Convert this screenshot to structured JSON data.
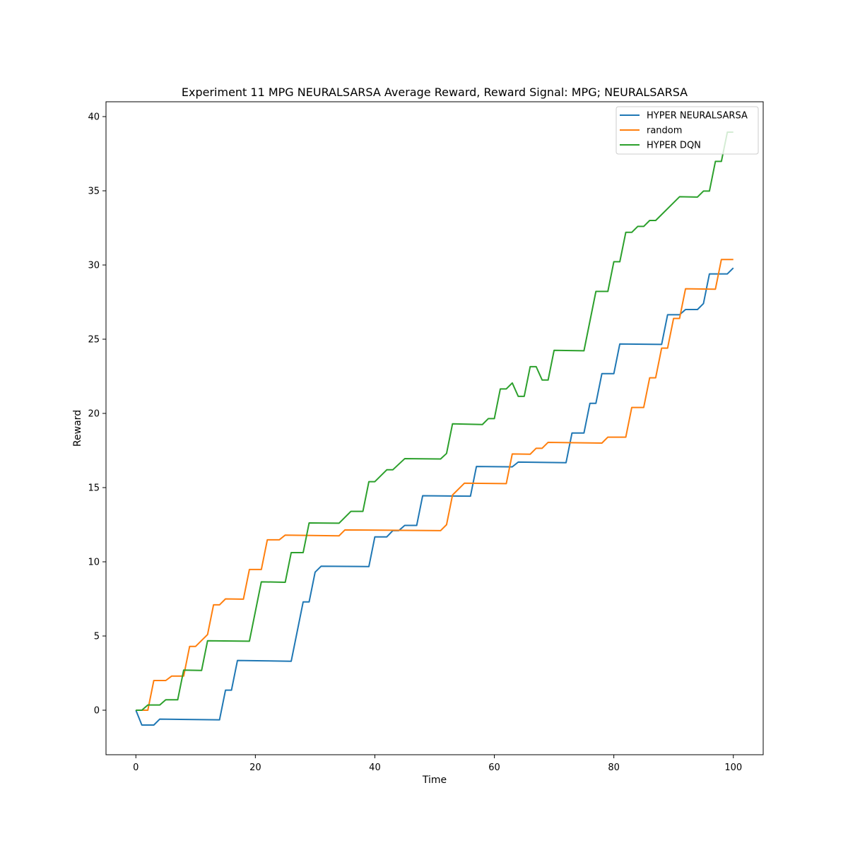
{
  "chart_data": {
    "type": "line",
    "title": "Experiment 11 MPG NEURALSARSA Average Reward,  Reward Signal: MPG; NEURALSARSA",
    "xlabel": "Time",
    "ylabel": "Reward",
    "xlim": [
      -5,
      105
    ],
    "ylim": [
      -3,
      41
    ],
    "xticks": [
      0,
      20,
      40,
      60,
      80,
      100
    ],
    "yticks": [
      0,
      5,
      10,
      15,
      20,
      25,
      30,
      35,
      40
    ],
    "grid": false,
    "legend_position": "top-right",
    "series": [
      {
        "name": "HYPER NEURALSARSA",
        "color": "#1f77b4",
        "points": [
          [
            0,
            0
          ],
          [
            1,
            -1
          ],
          [
            3,
            -1
          ],
          [
            4,
            -0.6
          ],
          [
            14,
            -0.65
          ],
          [
            15,
            1.35
          ],
          [
            16,
            1.35
          ],
          [
            17,
            3.35
          ],
          [
            26,
            3.3
          ],
          [
            28,
            7.3
          ],
          [
            29,
            7.3
          ],
          [
            30,
            9.3
          ],
          [
            31,
            9.7
          ],
          [
            39,
            9.68
          ],
          [
            40,
            11.68
          ],
          [
            42,
            11.68
          ],
          [
            43,
            12.1
          ],
          [
            44,
            12.1
          ],
          [
            45,
            12.45
          ],
          [
            47,
            12.45
          ],
          [
            48,
            14.45
          ],
          [
            56,
            14.42
          ],
          [
            57,
            16.42
          ],
          [
            63,
            16.4
          ],
          [
            64,
            16.72
          ],
          [
            72,
            16.68
          ],
          [
            73,
            18.68
          ],
          [
            75,
            18.68
          ],
          [
            76,
            20.68
          ],
          [
            77,
            20.68
          ],
          [
            78,
            22.68
          ],
          [
            80,
            22.68
          ],
          [
            81,
            24.68
          ],
          [
            88,
            24.65
          ],
          [
            89,
            26.65
          ],
          [
            91,
            26.65
          ],
          [
            92,
            27
          ],
          [
            94,
            27
          ],
          [
            95,
            27.4
          ],
          [
            96,
            29.4
          ],
          [
            99,
            29.4
          ],
          [
            100,
            29.8
          ]
        ]
      },
      {
        "name": "random",
        "color": "#ff7f0e",
        "points": [
          [
            0,
            0
          ],
          [
            2,
            0
          ],
          [
            3,
            2
          ],
          [
            5,
            2
          ],
          [
            6,
            2.3
          ],
          [
            8,
            2.3
          ],
          [
            9,
            4.3
          ],
          [
            10,
            4.3
          ],
          [
            12,
            5.1
          ],
          [
            13,
            7.1
          ],
          [
            14,
            7.1
          ],
          [
            15,
            7.5
          ],
          [
            18,
            7.48
          ],
          [
            19,
            9.48
          ],
          [
            21,
            9.48
          ],
          [
            22,
            11.48
          ],
          [
            24,
            11.48
          ],
          [
            25,
            11.8
          ],
          [
            34,
            11.75
          ],
          [
            35,
            12.15
          ],
          [
            51,
            12.1
          ],
          [
            52,
            12.5
          ],
          [
            53,
            14.5
          ],
          [
            55,
            15.3
          ],
          [
            62,
            15.27
          ],
          [
            63,
            17.27
          ],
          [
            66,
            17.25
          ],
          [
            67,
            17.65
          ],
          [
            68,
            17.65
          ],
          [
            69,
            18.05
          ],
          [
            78,
            18
          ],
          [
            79,
            18.4
          ],
          [
            82,
            18.4
          ],
          [
            83,
            20.4
          ],
          [
            85,
            20.4
          ],
          [
            86,
            22.4
          ],
          [
            87,
            22.4
          ],
          [
            88,
            24.4
          ],
          [
            89,
            24.4
          ],
          [
            90,
            26.4
          ],
          [
            91,
            26.4
          ],
          [
            92,
            28.4
          ],
          [
            97,
            28.37
          ],
          [
            98,
            30.37
          ],
          [
            100,
            30.37
          ]
        ]
      },
      {
        "name": "HYPER DQN",
        "color": "#2ca02c",
        "points": [
          [
            0,
            0
          ],
          [
            1,
            0
          ],
          [
            2,
            0.35
          ],
          [
            4,
            0.35
          ],
          [
            5,
            0.7
          ],
          [
            7,
            0.7
          ],
          [
            8,
            2.7
          ],
          [
            11,
            2.68
          ],
          [
            12,
            4.68
          ],
          [
            19,
            4.65
          ],
          [
            21,
            8.65
          ],
          [
            25,
            8.62
          ],
          [
            26,
            10.62
          ],
          [
            28,
            10.62
          ],
          [
            29,
            12.62
          ],
          [
            34,
            12.6
          ],
          [
            36,
            13.4
          ],
          [
            38,
            13.4
          ],
          [
            39,
            15.4
          ],
          [
            40,
            15.4
          ],
          [
            42,
            16.2
          ],
          [
            43,
            16.2
          ],
          [
            45,
            16.95
          ],
          [
            51,
            16.93
          ],
          [
            52,
            17.3
          ],
          [
            53,
            19.3
          ],
          [
            58,
            19.25
          ],
          [
            59,
            19.65
          ],
          [
            60,
            19.65
          ],
          [
            61,
            21.65
          ],
          [
            62,
            21.65
          ],
          [
            63,
            22.05
          ],
          [
            64,
            21.15
          ],
          [
            65,
            21.15
          ],
          [
            66,
            23.15
          ],
          [
            67,
            23.15
          ],
          [
            68,
            22.25
          ],
          [
            69,
            22.25
          ],
          [
            70,
            24.25
          ],
          [
            75,
            24.22
          ],
          [
            77,
            28.22
          ],
          [
            79,
            28.22
          ],
          [
            80,
            30.22
          ],
          [
            81,
            30.22
          ],
          [
            82,
            32.2
          ],
          [
            83,
            32.2
          ],
          [
            84,
            32.6
          ],
          [
            85,
            32.6
          ],
          [
            86,
            33
          ],
          [
            87,
            33
          ],
          [
            91,
            34.6
          ],
          [
            94,
            34.58
          ],
          [
            95,
            34.98
          ],
          [
            96,
            34.98
          ],
          [
            97,
            36.98
          ],
          [
            98,
            36.98
          ],
          [
            99,
            38.95
          ],
          [
            100,
            38.95
          ]
        ]
      }
    ]
  }
}
